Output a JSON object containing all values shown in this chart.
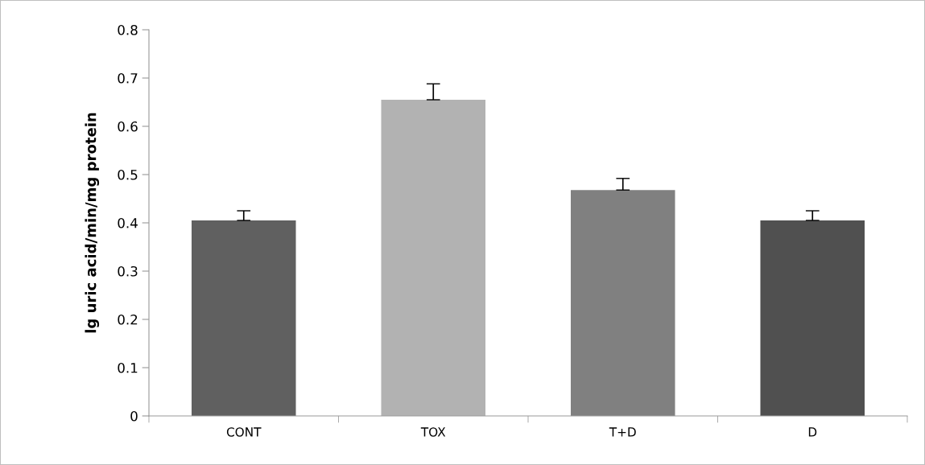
{
  "chart_data": {
    "type": "bar",
    "ylabel": "lg uric acid/min/mg protein",
    "categories": [
      "CONT",
      "TOX",
      "T+D",
      "D"
    ],
    "values": [
      0.405,
      0.655,
      0.468,
      0.405
    ],
    "errors": [
      0.02,
      0.033,
      0.024,
      0.02
    ],
    "colors": [
      "#606060",
      "#b2b2b2",
      "#808080",
      "#505050"
    ],
    "ylim": [
      0,
      0.8
    ],
    "yticks": [
      0,
      0.1,
      0.2,
      0.3,
      0.4,
      0.5,
      0.6,
      0.7,
      0.8
    ],
    "grid": false
  }
}
